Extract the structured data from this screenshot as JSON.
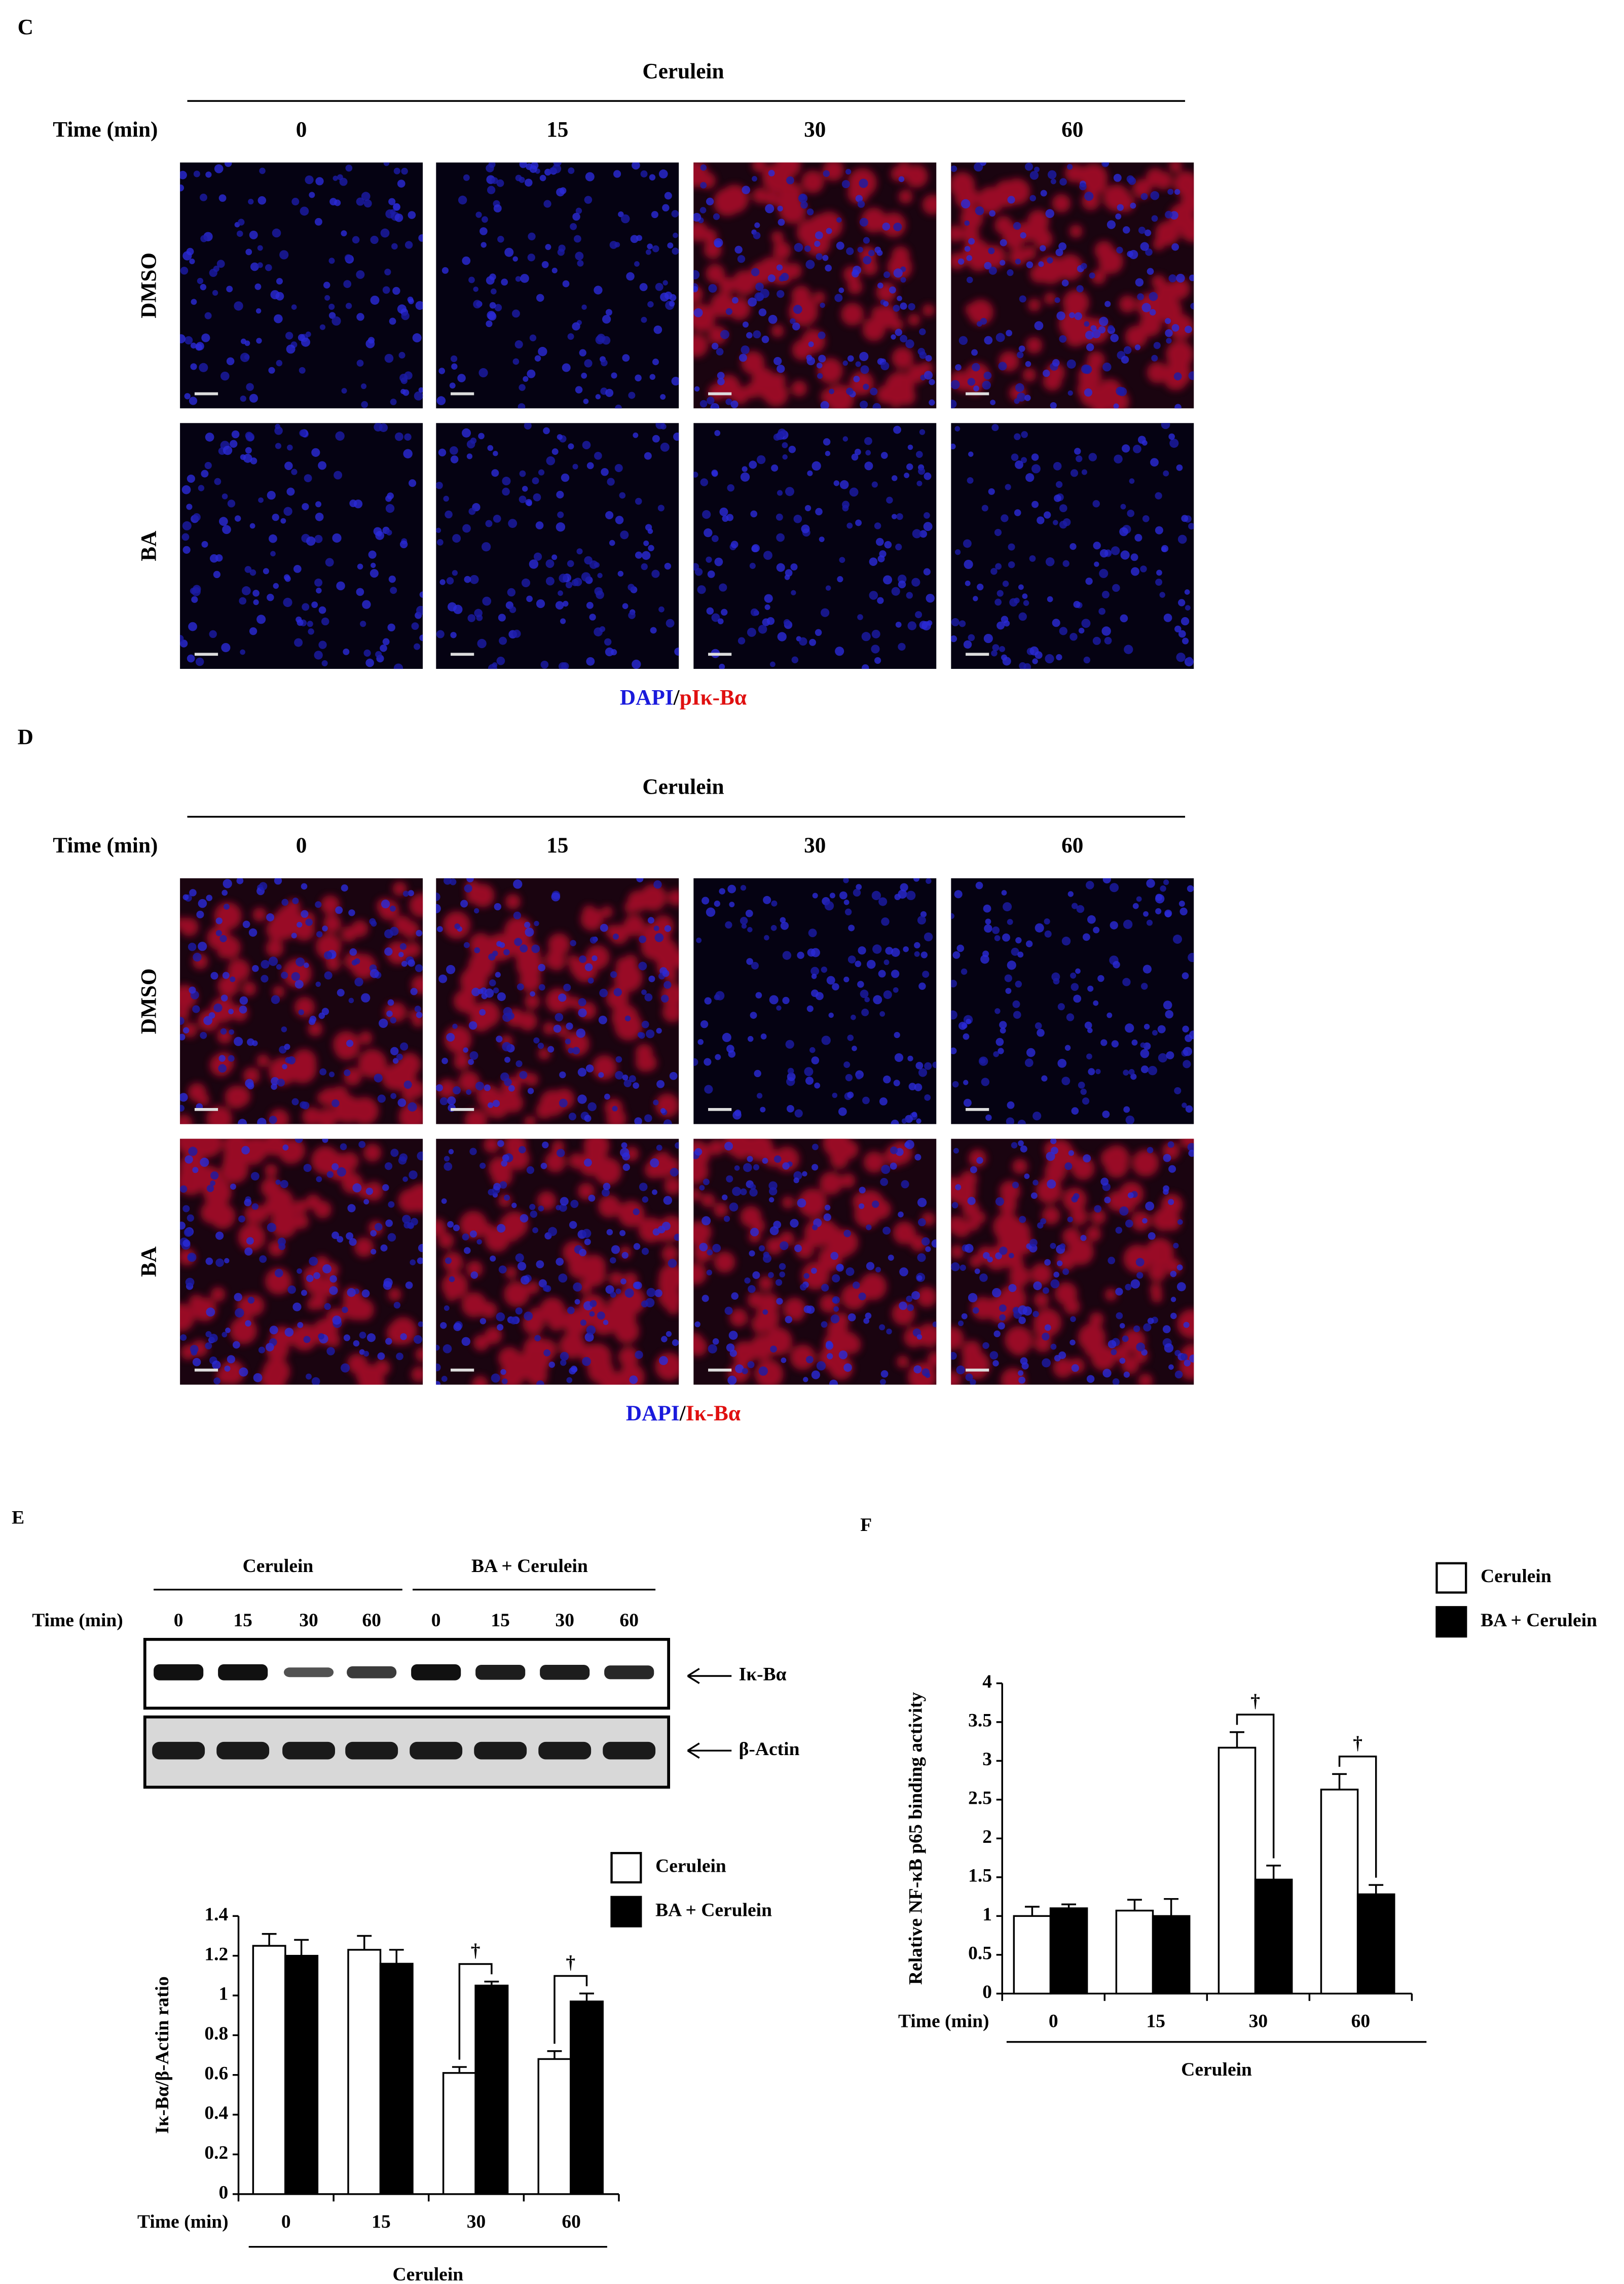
{
  "panel_C": {
    "label": "C",
    "treatment": "Cerulein",
    "time_label": "Time (min)",
    "times": [
      "0",
      "15",
      "30",
      "60"
    ],
    "rows": [
      "DMSO",
      "BA"
    ],
    "stain": [
      "DAPI",
      "/",
      "pIκ-Bα"
    ]
  },
  "panel_D": {
    "label": "D",
    "treatment": "Cerulein",
    "time_label": "Time (min)",
    "times": [
      "0",
      "15",
      "30",
      "60"
    ],
    "rows": [
      "DMSO",
      "BA"
    ],
    "stain": [
      "DAPI",
      "/",
      "Iκ-Bα"
    ]
  },
  "panel_E": {
    "label": "E",
    "groups": [
      "Cerulein",
      "BA + Cerulein"
    ],
    "time_label": "Time (min)",
    "times": [
      "0",
      "15",
      "30",
      "60",
      "0",
      "15",
      "30",
      "60"
    ],
    "bands": [
      "Iκ-Bα",
      "β-Actin"
    ]
  },
  "panel_F": {
    "label": "F"
  },
  "chart_data": [
    {
      "type": "bar",
      "ylabel": "Iκ-Bα/β-Actin ratio",
      "xlabel": "Time (min)",
      "group_label": "Cerulein",
      "categories": [
        "0",
        "15",
        "30",
        "60"
      ],
      "series": [
        {
          "name": "Cerulein",
          "color": "#ffffff",
          "values": [
            1.25,
            1.23,
            0.61,
            0.68
          ],
          "errors": [
            0.06,
            0.07,
            0.03,
            0.04
          ]
        },
        {
          "name": "BA + Cerulein",
          "color": "#000000",
          "values": [
            1.2,
            1.16,
            1.05,
            0.97
          ],
          "errors": [
            0.08,
            0.07,
            0.02,
            0.04
          ]
        }
      ],
      "annotations": [
        "†",
        "†"
      ],
      "ylim": [
        0,
        1.4
      ],
      "yticks": [
        0,
        0.2,
        0.4,
        0.6,
        0.8,
        1,
        1.2,
        1.4
      ]
    },
    {
      "type": "bar",
      "ylabel": "Relative NF-κB p65 binding activity",
      "xlabel": "Time (min)",
      "group_label": "Cerulein",
      "categories": [
        "0",
        "15",
        "30",
        "60"
      ],
      "series": [
        {
          "name": "Cerulein",
          "color": "#ffffff",
          "values": [
            1.0,
            1.07,
            3.17,
            2.63
          ],
          "errors": [
            0.12,
            0.14,
            0.2,
            0.2
          ]
        },
        {
          "name": "BA + Cerulein",
          "color": "#000000",
          "values": [
            1.1,
            1.0,
            1.47,
            1.28
          ],
          "errors": [
            0.05,
            0.22,
            0.18,
            0.12
          ]
        }
      ],
      "annotations": [
        "†",
        "†"
      ],
      "ylim": [
        0,
        4
      ],
      "yticks": [
        0,
        0.5,
        1,
        1.5,
        2,
        2.5,
        3,
        3.5,
        4
      ]
    }
  ]
}
